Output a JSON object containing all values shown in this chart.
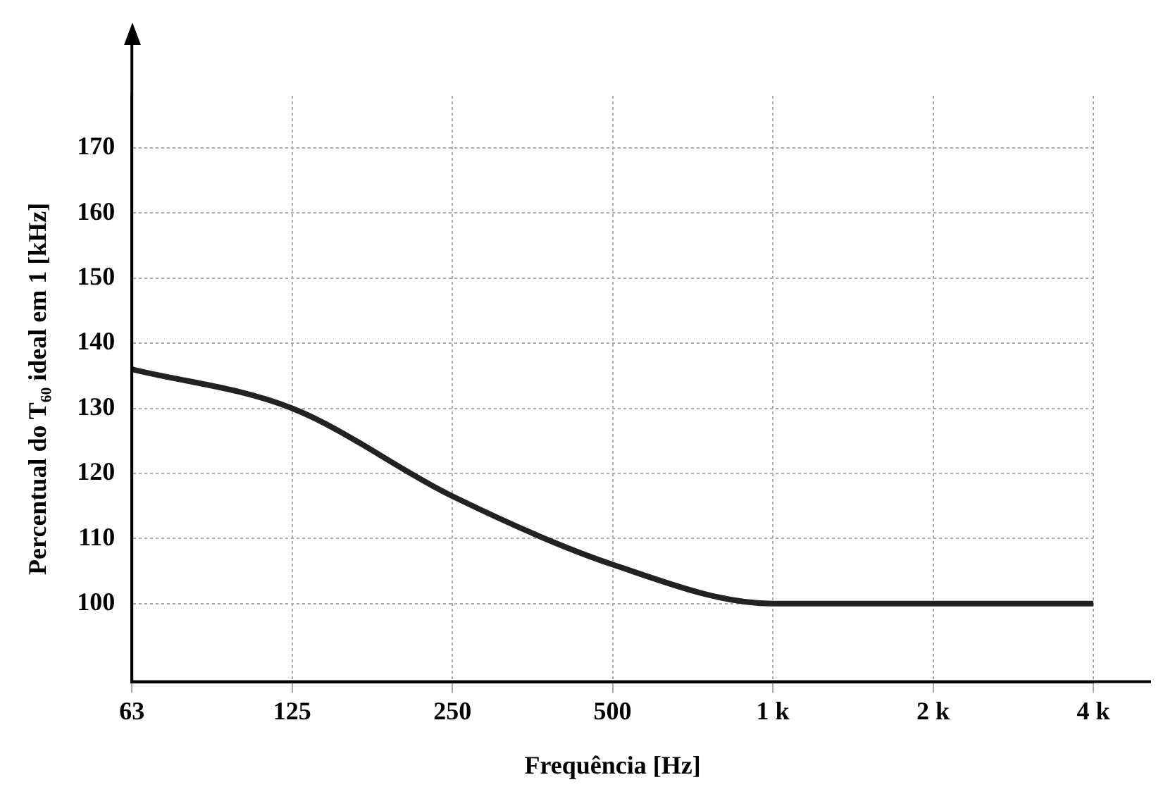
{
  "chart_data": {
    "type": "line",
    "xlabel": "Frequência [Hz]",
    "ylabel": "Percentual do T₆₀ ideal em 1 [kHz]",
    "categories": [
      "63",
      "125",
      "250",
      "500",
      "1 k",
      "2 k",
      "4 k"
    ],
    "series": [
      {
        "color": "#222222",
        "values": [
          136,
          130,
          116.5,
          106,
          100,
          100,
          100
        ]
      }
    ],
    "ylim": [
      88,
      178
    ],
    "yticks": [
      100,
      110,
      120,
      130,
      140,
      150,
      160,
      170
    ],
    "grid": true,
    "legend": false
  }
}
